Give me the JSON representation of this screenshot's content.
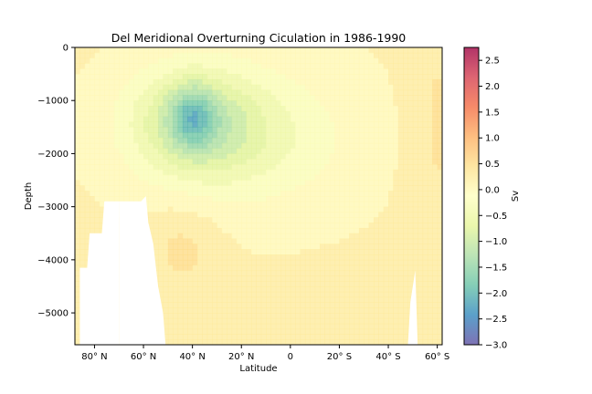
{
  "chart_data": {
    "type": "heatmap",
    "title": "Del Meridional Overturning Ciculation in 1986-1990",
    "xlabel": "Latitude",
    "ylabel": "Depth",
    "colorbar_label": "Sv",
    "colormap": "Spectral_r",
    "xlim": [
      88,
      -62
    ],
    "ylim": [
      -5600,
      0
    ],
    "x_ticks": [
      {
        "value": 80,
        "label": "80° N"
      },
      {
        "value": 60,
        "label": "60° N"
      },
      {
        "value": 40,
        "label": "40° N"
      },
      {
        "value": 20,
        "label": "20° N"
      },
      {
        "value": 0,
        "label": "0"
      },
      {
        "value": -20,
        "label": "20° S"
      },
      {
        "value": -40,
        "label": "40° S"
      },
      {
        "value": -60,
        "label": "60° S"
      }
    ],
    "y_ticks": [
      {
        "value": 0,
        "label": "0"
      },
      {
        "value": -1000,
        "label": "−1000"
      },
      {
        "value": -2000,
        "label": "−2000"
      },
      {
        "value": -3000,
        "label": "−3000"
      },
      {
        "value": -4000,
        "label": "−4000"
      },
      {
        "value": -5000,
        "label": "−5000"
      }
    ],
    "colorbar_range": [
      -3.0,
      2.75
    ],
    "colorbar_ticks": [
      {
        "value": 2.5,
        "label": "2.5"
      },
      {
        "value": 2.0,
        "label": "2.0"
      },
      {
        "value": 1.5,
        "label": "1.5"
      },
      {
        "value": 1.0,
        "label": "1.0"
      },
      {
        "value": 0.5,
        "label": "0.5"
      },
      {
        "value": 0.0,
        "label": "0.0"
      },
      {
        "value": -0.5,
        "label": "−0.5"
      },
      {
        "value": -1.0,
        "label": "−1.0"
      },
      {
        "value": -1.5,
        "label": "−1.5"
      },
      {
        "value": -2.0,
        "label": "−2.0"
      },
      {
        "value": -2.5,
        "label": "−2.5"
      },
      {
        "value": -3.0,
        "label": "−3.0"
      }
    ],
    "features": [
      {
        "kind": "background",
        "value": 0.15
      },
      {
        "kind": "cell",
        "lat": 40,
        "depth": -1400,
        "value": -1.1,
        "lat_spread": 18,
        "depth_spread": 700
      },
      {
        "kind": "cell",
        "lat": 40,
        "depth": -1300,
        "value": -0.9,
        "lat_spread": 6,
        "depth_spread": 400
      },
      {
        "kind": "cell",
        "lat": 15,
        "depth": -1700,
        "value": -0.55,
        "lat_spread": 28,
        "depth_spread": 900
      },
      {
        "kind": "cell",
        "lat": 44,
        "depth": -3800,
        "value": 0.3,
        "lat_spread": 10,
        "depth_spread": 600
      },
      {
        "kind": "cell",
        "lat": -60,
        "depth": -1500,
        "value": 0.25,
        "lat_spread": 8,
        "depth_spread": 2500
      }
    ]
  }
}
